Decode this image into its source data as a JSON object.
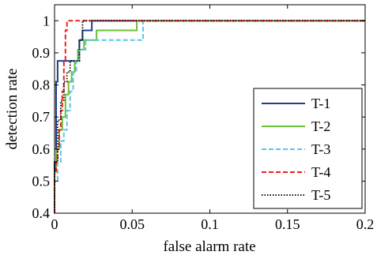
{
  "chart_data": {
    "type": "line",
    "title": "",
    "xlabel": "false alarm rate",
    "ylabel": "detection rate",
    "xlim": [
      0,
      0.2
    ],
    "ylim": [
      0.4,
      1.05
    ],
    "xticks": [
      0,
      0.05,
      0.1,
      0.15,
      0.2
    ],
    "xtick_labels": [
      "0",
      "0.05",
      "0.1",
      "0.15",
      "0.2"
    ],
    "yticks": [
      0.4,
      0.5,
      0.6,
      0.7,
      0.8,
      0.9,
      1.0
    ],
    "ytick_labels": [
      "0.4",
      "0.5",
      "0.6",
      "0.7",
      "0.8",
      "0.9",
      "1"
    ],
    "grid": false,
    "legend_position": "bottom-right",
    "series": [
      {
        "name": "T-1",
        "color": "#1f3f8f",
        "dash": "solid",
        "points": [
          [
            0,
            0.4
          ],
          [
            0,
            0.56
          ],
          [
            0.001,
            0.56
          ],
          [
            0.001,
            0.81
          ],
          [
            0.002,
            0.81
          ],
          [
            0.002,
            0.875
          ],
          [
            0.016,
            0.875
          ],
          [
            0.016,
            0.94
          ],
          [
            0.018,
            0.94
          ],
          [
            0.018,
            0.97
          ],
          [
            0.024,
            0.97
          ],
          [
            0.024,
            1.0
          ],
          [
            0.2,
            1.0
          ]
        ]
      },
      {
        "name": "T-2",
        "color": "#6abf3a",
        "dash": "solid",
        "points": [
          [
            0,
            0.4
          ],
          [
            0,
            0.53
          ],
          [
            0.001,
            0.53
          ],
          [
            0.001,
            0.6
          ],
          [
            0.003,
            0.6
          ],
          [
            0.003,
            0.66
          ],
          [
            0.005,
            0.66
          ],
          [
            0.005,
            0.7
          ],
          [
            0.007,
            0.7
          ],
          [
            0.007,
            0.77
          ],
          [
            0.009,
            0.77
          ],
          [
            0.009,
            0.81
          ],
          [
            0.011,
            0.81
          ],
          [
            0.011,
            0.84
          ],
          [
            0.013,
            0.84
          ],
          [
            0.013,
            0.875
          ],
          [
            0.015,
            0.875
          ],
          [
            0.015,
            0.91
          ],
          [
            0.019,
            0.91
          ],
          [
            0.019,
            0.94
          ],
          [
            0.027,
            0.94
          ],
          [
            0.027,
            0.97
          ],
          [
            0.053,
            0.97
          ],
          [
            0.053,
            1.0
          ],
          [
            0.2,
            1.0
          ]
        ]
      },
      {
        "name": "T-3",
        "color": "#5bc6e8",
        "dash": "dashed",
        "points": [
          [
            0,
            0.4
          ],
          [
            0,
            0.5
          ],
          [
            0.002,
            0.5
          ],
          [
            0.002,
            0.56
          ],
          [
            0.004,
            0.56
          ],
          [
            0.004,
            0.625
          ],
          [
            0.006,
            0.625
          ],
          [
            0.006,
            0.66
          ],
          [
            0.008,
            0.66
          ],
          [
            0.008,
            0.72
          ],
          [
            0.01,
            0.72
          ],
          [
            0.01,
            0.78
          ],
          [
            0.012,
            0.78
          ],
          [
            0.012,
            0.84
          ],
          [
            0.014,
            0.84
          ],
          [
            0.014,
            0.875
          ],
          [
            0.016,
            0.875
          ],
          [
            0.016,
            0.91
          ],
          [
            0.02,
            0.91
          ],
          [
            0.02,
            0.94
          ],
          [
            0.057,
            0.94
          ],
          [
            0.057,
            1.0
          ],
          [
            0.2,
            1.0
          ]
        ]
      },
      {
        "name": "T-4",
        "color": "#e8231f",
        "dash": "dashed",
        "points": [
          [
            0,
            0.4
          ],
          [
            0,
            0.53
          ],
          [
            0.001,
            0.53
          ],
          [
            0.001,
            0.56
          ],
          [
            0.002,
            0.56
          ],
          [
            0.002,
            0.6
          ],
          [
            0.003,
            0.6
          ],
          [
            0.003,
            0.66
          ],
          [
            0.004,
            0.66
          ],
          [
            0.004,
            0.72
          ],
          [
            0.005,
            0.72
          ],
          [
            0.005,
            0.78
          ],
          [
            0.006,
            0.78
          ],
          [
            0.006,
            0.875
          ],
          [
            0.007,
            0.875
          ],
          [
            0.007,
            0.97
          ],
          [
            0.008,
            0.97
          ],
          [
            0.008,
            1.0
          ],
          [
            0.2,
            1.0
          ]
        ]
      },
      {
        "name": "T-5",
        "color": "#111111",
        "dash": "dotted",
        "points": [
          [
            0,
            0.4
          ],
          [
            0,
            0.56
          ],
          [
            0.002,
            0.56
          ],
          [
            0.002,
            0.69
          ],
          [
            0.004,
            0.69
          ],
          [
            0.004,
            0.75
          ],
          [
            0.006,
            0.75
          ],
          [
            0.006,
            0.81
          ],
          [
            0.008,
            0.81
          ],
          [
            0.008,
            0.84
          ],
          [
            0.01,
            0.84
          ],
          [
            0.01,
            0.875
          ],
          [
            0.016,
            0.875
          ],
          [
            0.016,
            0.94
          ],
          [
            0.018,
            0.94
          ],
          [
            0.018,
            1.0
          ],
          [
            0.2,
            1.0
          ]
        ]
      }
    ]
  }
}
